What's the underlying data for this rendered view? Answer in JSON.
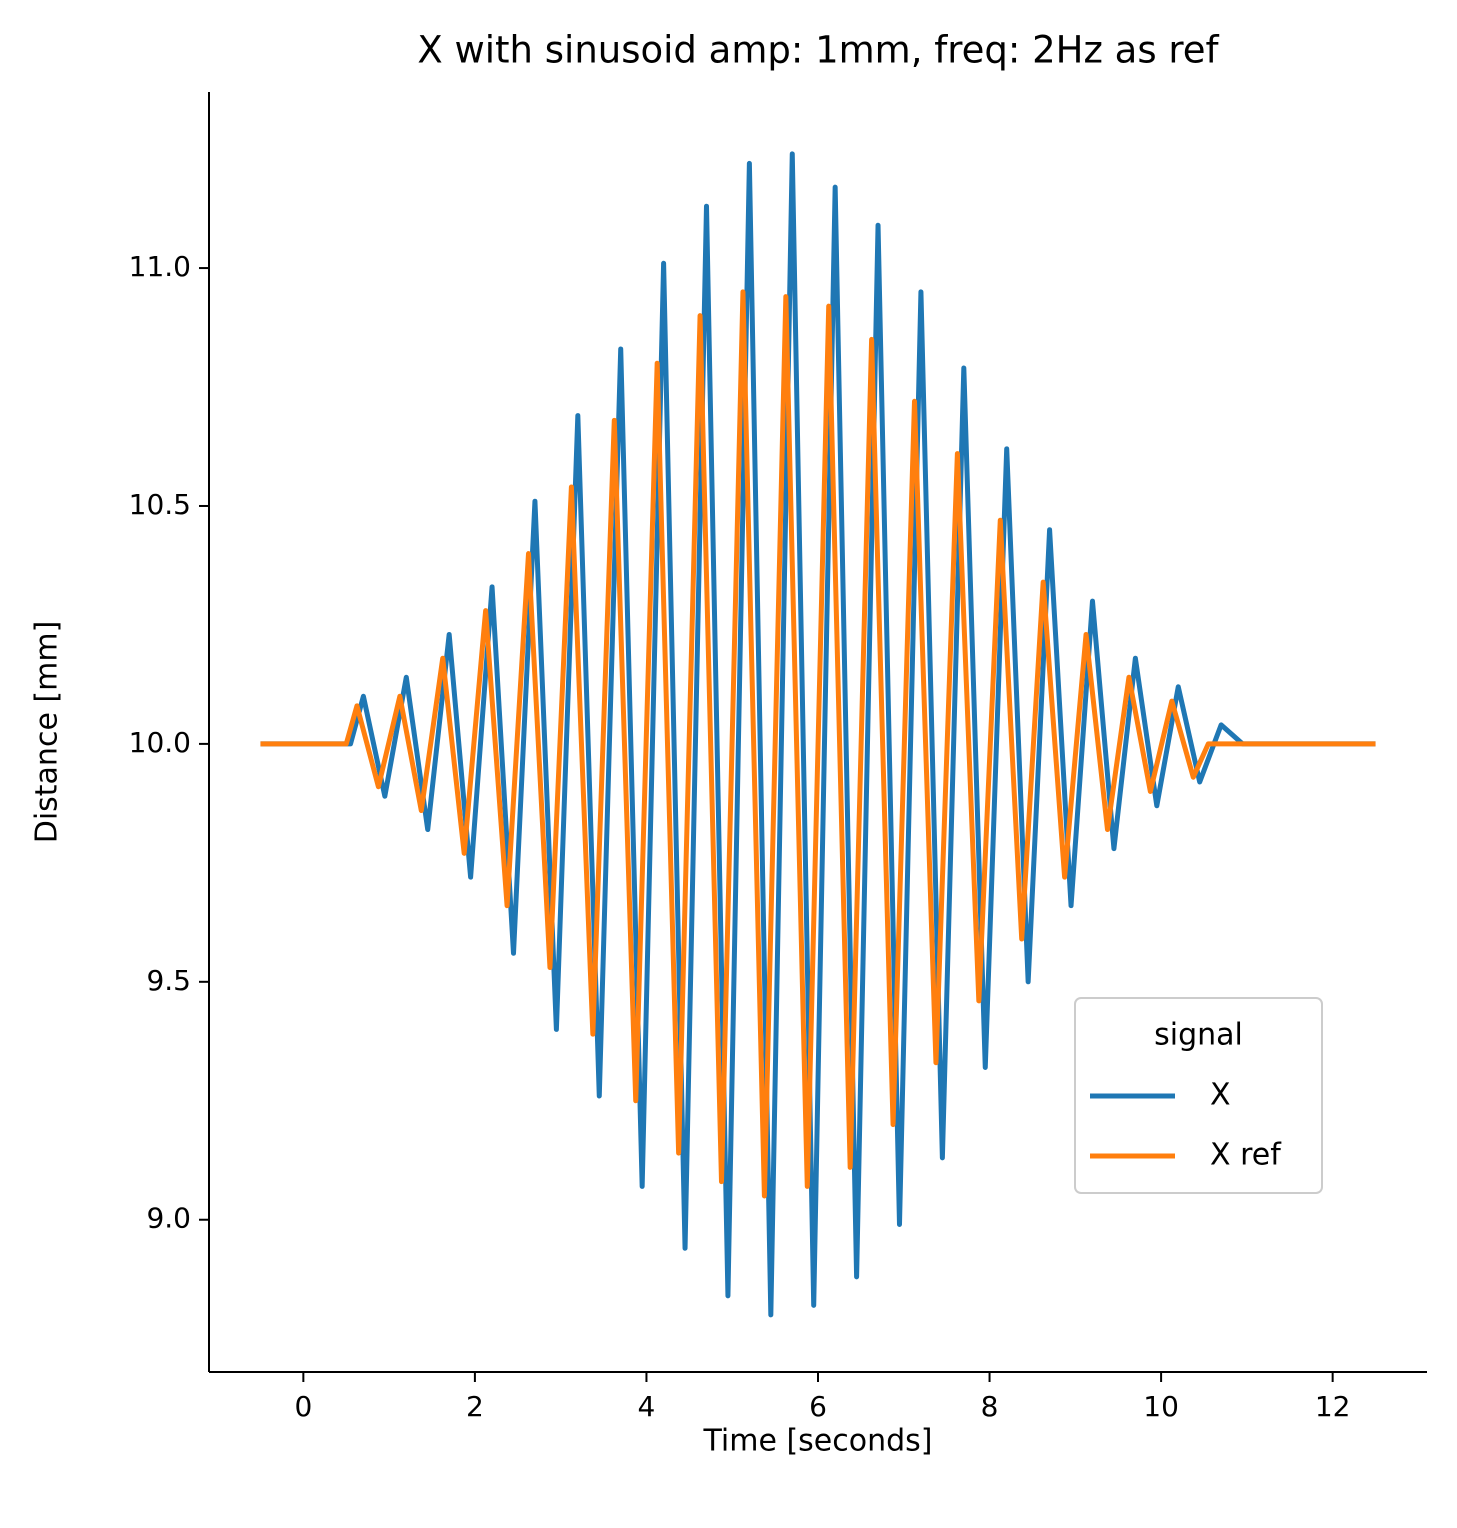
{
  "chart_data": {
    "type": "line",
    "title": "X with sinusoid amp: 1mm, freq: 2Hz as ref",
    "xlabel": "Time [seconds]",
    "ylabel": "Distance [mm]",
    "xlim": [
      -1.1,
      13.1
    ],
    "ylim": [
      8.68,
      11.37
    ],
    "xticks": [
      0,
      2,
      4,
      6,
      8,
      10,
      12
    ],
    "yticks": [
      {
        "value": 9.0,
        "label": "9.0"
      },
      9.5,
      {
        "value": 10.0,
        "label": "10.0"
      },
      10.5,
      {
        "value": 11.0,
        "label": "11.0"
      }
    ],
    "grid": false,
    "legend_title": "signal",
    "legend_loc": "lower right",
    "series": [
      {
        "name": "X",
        "color": "#1f77b4",
        "x": [
          -0.5,
          0.55,
          0.7,
          0.95,
          1.2,
          1.45,
          1.7,
          1.95,
          2.2,
          2.45,
          2.7,
          2.95,
          3.2,
          3.45,
          3.7,
          3.95,
          4.2,
          4.45,
          4.7,
          4.95,
          5.2,
          5.45,
          5.7,
          5.95,
          6.2,
          6.45,
          6.7,
          6.95,
          7.2,
          7.45,
          7.7,
          7.95,
          8.2,
          8.45,
          8.7,
          8.95,
          9.2,
          9.45,
          9.7,
          9.95,
          10.2,
          10.45,
          10.7,
          10.95,
          12.5
        ],
        "values": [
          10,
          10,
          10.1,
          9.89,
          10.14,
          9.82,
          10.23,
          9.72,
          10.33,
          9.56,
          10.51,
          9.4,
          10.69,
          9.26,
          10.83,
          9.07,
          11.01,
          8.94,
          11.13,
          8.84,
          11.22,
          8.8,
          11.24,
          8.82,
          11.17,
          8.88,
          11.09,
          8.99,
          10.95,
          9.13,
          10.79,
          9.32,
          10.62,
          9.5,
          10.45,
          9.66,
          10.3,
          9.78,
          10.18,
          9.87,
          10.12,
          9.92,
          10.04,
          10,
          10
        ]
      },
      {
        "name": "X ref",
        "color": "#ff7f0e",
        "x": [
          -0.5,
          0.5,
          0.625,
          0.875,
          1.125,
          1.375,
          1.625,
          1.875,
          2.125,
          2.375,
          2.625,
          2.875,
          3.125,
          3.375,
          3.625,
          3.875,
          4.125,
          4.375,
          4.625,
          4.875,
          5.125,
          5.375,
          5.625,
          5.875,
          6.125,
          6.375,
          6.625,
          6.875,
          7.125,
          7.375,
          7.625,
          7.875,
          8.125,
          8.375,
          8.625,
          8.875,
          9.125,
          9.375,
          9.625,
          9.875,
          10.125,
          10.375,
          10.55,
          12.5
        ],
        "values": [
          10,
          10,
          10.08,
          9.91,
          10.1,
          9.86,
          10.18,
          9.77,
          10.28,
          9.66,
          10.4,
          9.53,
          10.54,
          9.39,
          10.68,
          9.25,
          10.8,
          9.14,
          10.9,
          9.08,
          10.95,
          9.05,
          10.94,
          9.07,
          10.92,
          9.11,
          10.85,
          9.2,
          10.72,
          9.33,
          10.61,
          9.46,
          10.47,
          9.59,
          10.34,
          9.72,
          10.23,
          9.82,
          10.14,
          9.9,
          10.09,
          9.93,
          10,
          10
        ]
      }
    ]
  }
}
